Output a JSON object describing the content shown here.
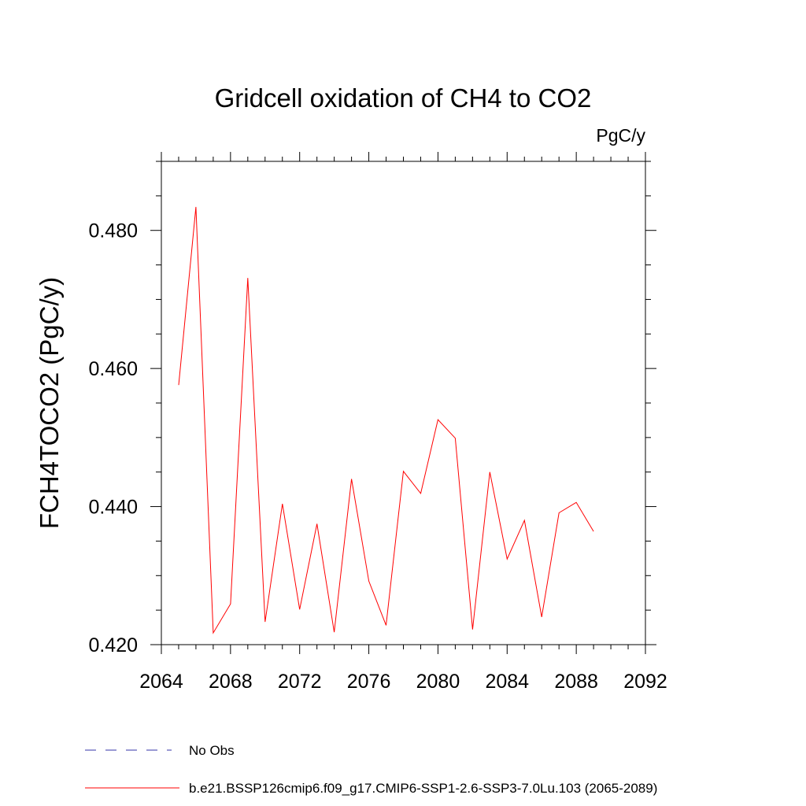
{
  "chart_data": {
    "type": "line",
    "title": "Gridcell oxidation of CH4 to CO2",
    "units_label": "PgC/y",
    "ylabel": "FCH4TOCO2  (PgC/y)",
    "xlabel": "",
    "xlim": [
      2064,
      2092
    ],
    "ylim": [
      0.42,
      0.49
    ],
    "xticks": [
      2064,
      2068,
      2072,
      2076,
      2080,
      2084,
      2088,
      2092
    ],
    "xtick_labels": [
      "2064",
      "2068",
      "2072",
      "2076",
      "2080",
      "2084",
      "2088",
      "2092"
    ],
    "yticks": [
      0.42,
      0.44,
      0.46,
      0.48
    ],
    "ytick_labels": [
      "0.420",
      "0.440",
      "0.460",
      "0.480"
    ],
    "grid": false,
    "series": [
      {
        "name": "b.e21.BSSP126cmip6.f09_g17.CMIP6-SSP1-2.6-SSP3-7.0Lu.103 (2065-2089)",
        "color": "#ff0000",
        "style": "solid",
        "x": [
          2065,
          2066,
          2067,
          2068,
          2069,
          2070,
          2071,
          2072,
          2073,
          2074,
          2075,
          2076,
          2077,
          2078,
          2079,
          2080,
          2081,
          2082,
          2083,
          2084,
          2085,
          2086,
          2087,
          2088,
          2089
        ],
        "values": [
          0.4576,
          0.4834,
          0.4217,
          0.4259,
          0.4731,
          0.4233,
          0.4404,
          0.4251,
          0.4375,
          0.4218,
          0.444,
          0.4292,
          0.4228,
          0.4451,
          0.4419,
          0.4526,
          0.4499,
          0.4222,
          0.445,
          0.4324,
          0.438,
          0.424,
          0.4391,
          0.4406,
          0.4364
        ]
      }
    ],
    "legend": [
      {
        "label": "No Obs",
        "color": "#3333aa",
        "style": "dashed"
      },
      {
        "label": "b.e21.BSSP126cmip6.f09_g17.CMIP6-SSP1-2.6-SSP3-7.0Lu.103 (2065-2089)",
        "color": "#ff0000",
        "style": "solid"
      }
    ]
  }
}
